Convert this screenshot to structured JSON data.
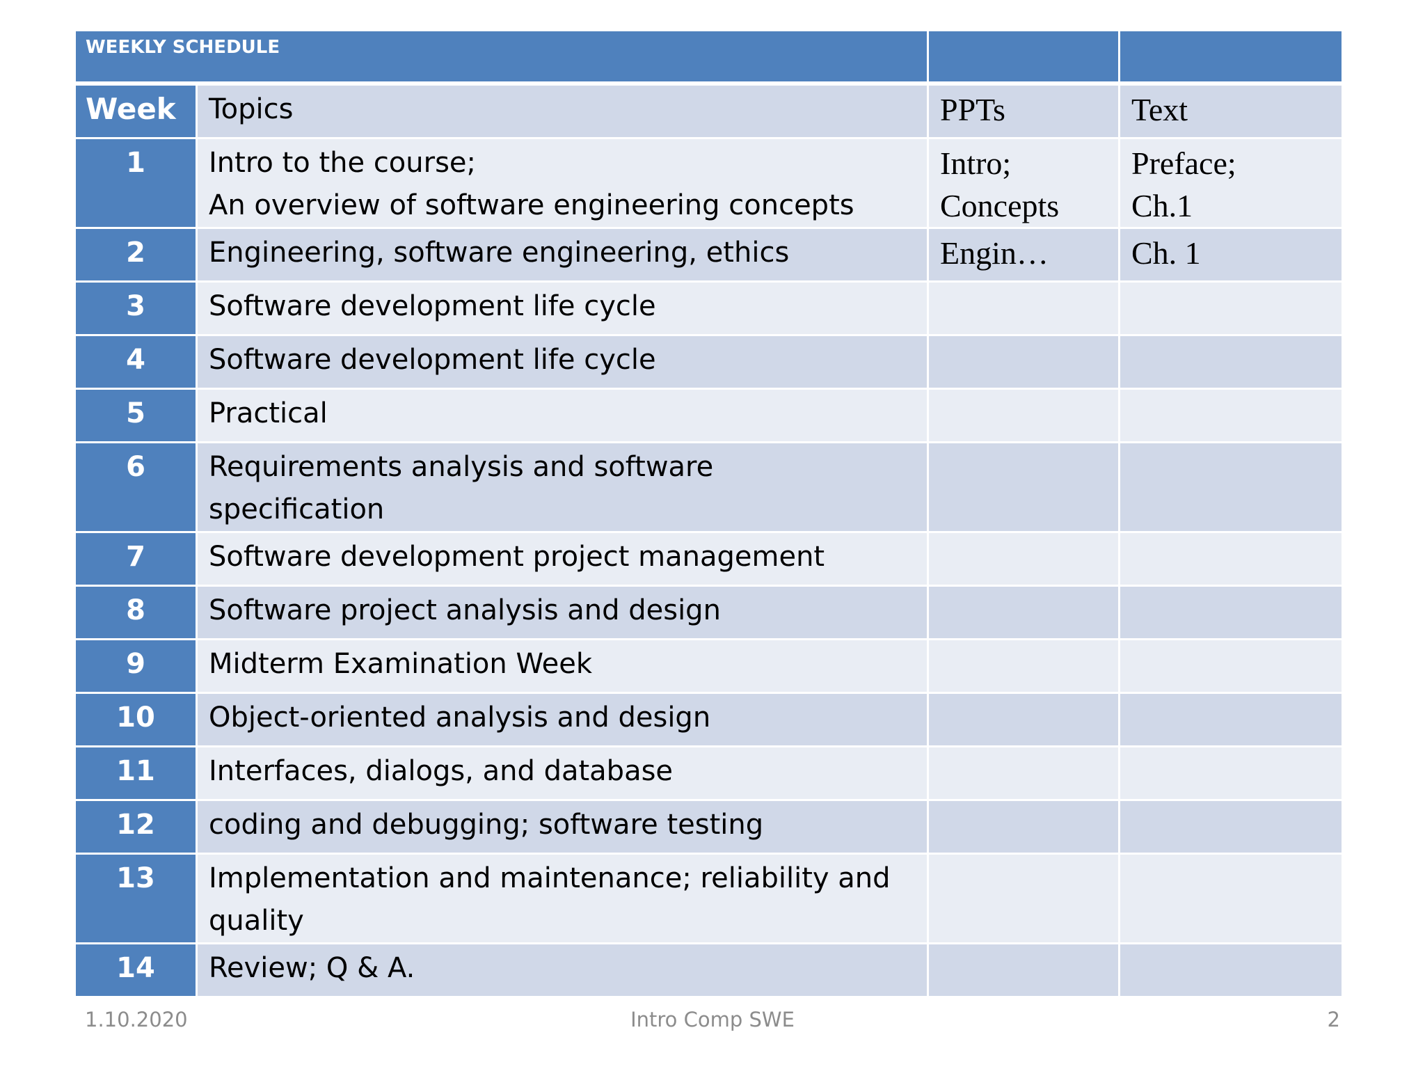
{
  "table": {
    "title": "WEEKLY SCHEDULE",
    "headers": {
      "week": "Week",
      "topics": "Topics",
      "ppts": "PPTs",
      "text": "Text"
    },
    "rows": [
      {
        "week": "1",
        "topics": [
          "Intro to the course;",
          "An overview of software engineering concepts"
        ],
        "ppts": [
          "Intro;",
          "Concepts"
        ],
        "text": [
          "Preface;",
          "Ch.1"
        ]
      },
      {
        "week": "2",
        "topics": [
          "Engineering, software engineering, ethics"
        ],
        "ppts": [
          "Engin…"
        ],
        "text": [
          "Ch. 1"
        ]
      },
      {
        "week": "3",
        "topics": [
          "Software development life cycle"
        ],
        "ppts": [
          ""
        ],
        "text": [
          ""
        ]
      },
      {
        "week": "4",
        "topics": [
          "Software development life cycle"
        ],
        "ppts": [
          ""
        ],
        "text": [
          ""
        ]
      },
      {
        "week": "5",
        "topics": [
          "Practical"
        ],
        "ppts": [
          ""
        ],
        "text": [
          ""
        ]
      },
      {
        "week": "6",
        "topics": [
          "Requirements analysis and software",
          "specification"
        ],
        "ppts": [
          ""
        ],
        "text": [
          ""
        ]
      },
      {
        "week": "7",
        "topics": [
          "Software development project management"
        ],
        "ppts": [
          ""
        ],
        "text": [
          ""
        ]
      },
      {
        "week": "8",
        "topics": [
          "Software project analysis and design"
        ],
        "ppts": [
          ""
        ],
        "text": [
          ""
        ]
      },
      {
        "week": "9",
        "topics": [
          "Midterm Examination Week"
        ],
        "ppts": [
          ""
        ],
        "text": [
          ""
        ]
      },
      {
        "week": "10",
        "topics": [
          "Object-oriented analysis and design"
        ],
        "ppts": [
          ""
        ],
        "text": [
          ""
        ]
      },
      {
        "week": "11",
        "topics": [
          "Interfaces, dialogs, and database"
        ],
        "ppts": [
          ""
        ],
        "text": [
          ""
        ]
      },
      {
        "week": "12",
        "topics": [
          "coding and debugging; software testing"
        ],
        "ppts": [
          ""
        ],
        "text": [
          ""
        ]
      },
      {
        "week": "13",
        "topics": [
          "Implementation and maintenance; reliability and",
          "quality"
        ],
        "ppts": [
          ""
        ],
        "text": [
          ""
        ]
      },
      {
        "week": "14",
        "topics": [
          "Review; Q & A."
        ],
        "ppts": [
          ""
        ],
        "text": [
          ""
        ]
      }
    ]
  },
  "footer": {
    "date": "1.10.2020",
    "center": "Intro Comp SWE",
    "page": "2"
  },
  "colors": {
    "header_blue": "#4f81bd",
    "row_dark": "#d0d8e8",
    "row_light": "#e9edf4",
    "footer_gray": "#8c8c8c"
  }
}
